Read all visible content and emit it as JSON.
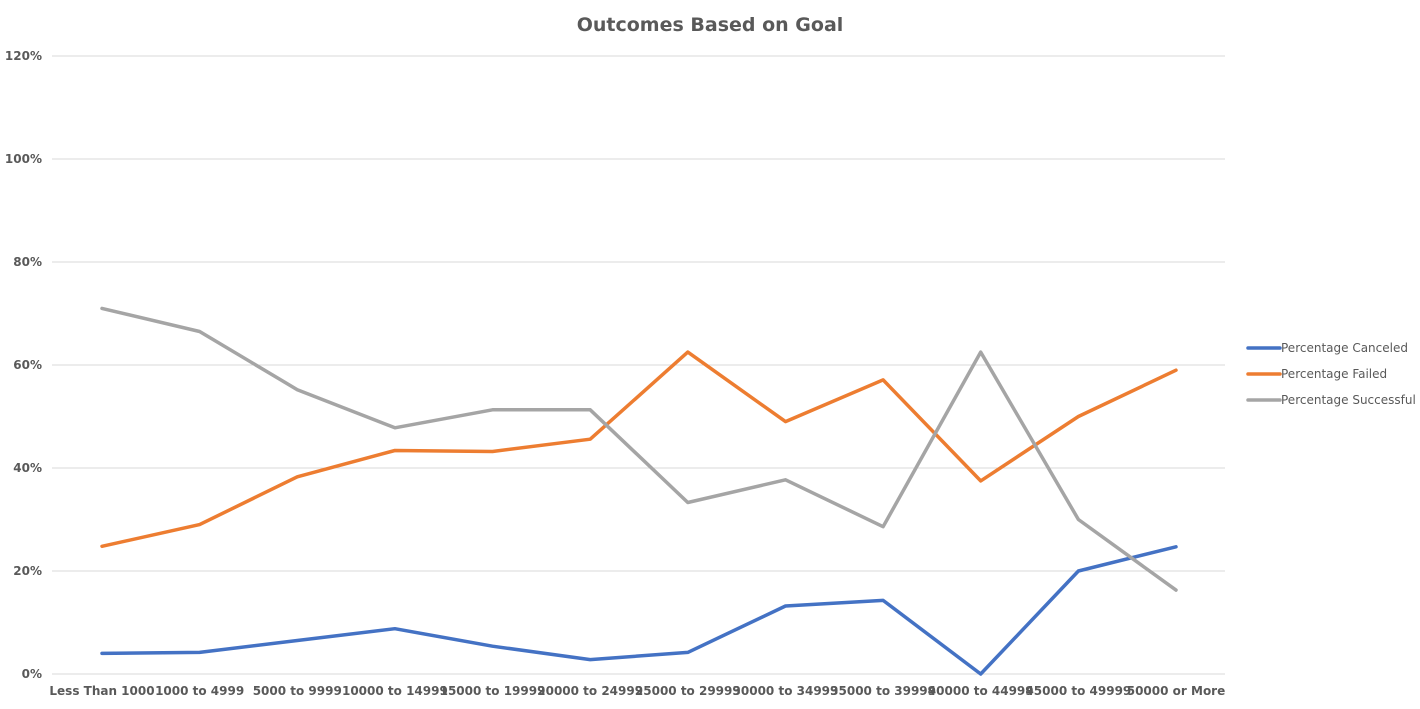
{
  "chart_data": {
    "type": "line",
    "title": "Outcomes Based on Goal",
    "xlabel": "",
    "ylabel": "",
    "categories": [
      "Less Than 1000",
      "1000 to 4999",
      "5000 to 9999",
      "10000 to 14999",
      "15000 to 19999",
      "20000 to 24999",
      "25000 to 29999",
      "30000 to 34999",
      "35000 to 39999",
      "40000 to 44999",
      "45000 to 49999",
      "50000 or More"
    ],
    "ylim": [
      0,
      1.2
    ],
    "y_ticks": [
      {
        "value": 0,
        "label": "0%"
      },
      {
        "value": 0.2,
        "label": "20%"
      },
      {
        "value": 0.4,
        "label": "40%"
      },
      {
        "value": 0.6,
        "label": "60%"
      },
      {
        "value": 0.8,
        "label": "80%"
      },
      {
        "value": 1.0,
        "label": "100%"
      },
      {
        "value": 1.2,
        "label": "120%"
      }
    ],
    "grid": true,
    "legend_position": "right",
    "series": [
      {
        "name": "Percentage Canceled",
        "color": "#4472c4",
        "values": [
          0.04,
          0.042,
          0.065,
          0.088,
          0.054,
          0.028,
          0.042,
          0.132,
          0.143,
          0.0,
          0.2,
          0.247
        ]
      },
      {
        "name": "Percentage Failed",
        "color": "#ed7d31",
        "values": [
          0.248,
          0.29,
          0.383,
          0.434,
          0.432,
          0.456,
          0.625,
          0.49,
          0.571,
          0.375,
          0.5,
          0.59
        ]
      },
      {
        "name": "Percentage Successful",
        "color": "#a5a5a5",
        "values": [
          0.71,
          0.665,
          0.552,
          0.478,
          0.513,
          0.513,
          0.333,
          0.377,
          0.286,
          0.625,
          0.3,
          0.163
        ]
      }
    ]
  }
}
